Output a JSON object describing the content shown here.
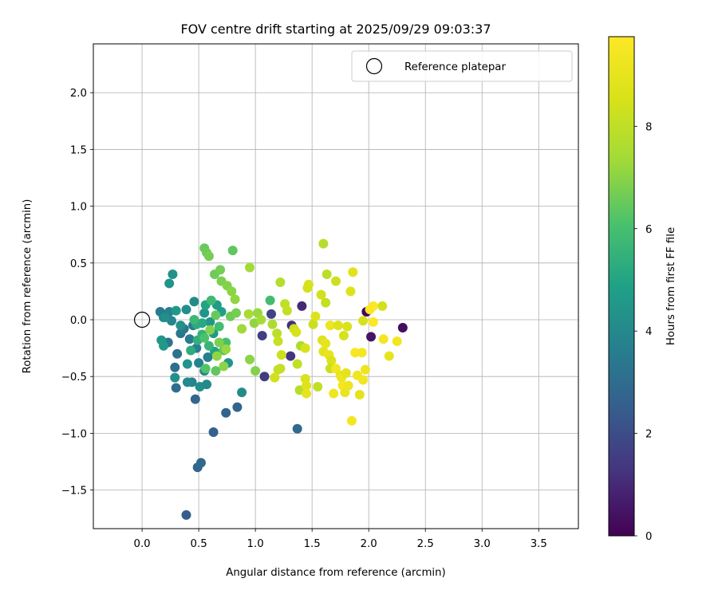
{
  "chart_data": {
    "type": "scatter",
    "title": "FOV centre drift starting at 2025/09/29 09:03:37",
    "xlabel": "Angular distance from reference (arcmin)",
    "ylabel": "Rotation from reference (arcmin)",
    "xlim": [
      -0.43,
      3.85
    ],
    "ylim": [
      -1.84,
      2.43
    ],
    "xticks": [
      0.0,
      0.5,
      1.0,
      1.5,
      2.0,
      2.5,
      3.0,
      3.5
    ],
    "xtick_labels": [
      "0.0",
      "0.5",
      "1.0",
      "1.5",
      "2.0",
      "2.5",
      "3.0",
      "3.5"
    ],
    "yticks": [
      -1.5,
      -1.0,
      -0.5,
      0.0,
      0.5,
      1.0,
      1.5,
      2.0
    ],
    "ytick_labels": [
      "−1.5",
      "−1.0",
      "−0.5",
      "0.0",
      "0.5",
      "1.0",
      "1.5",
      "2.0"
    ],
    "grid": true,
    "legend": {
      "position": "top-right",
      "entries": [
        "Reference platepar"
      ]
    },
    "reference_point": {
      "x": 0.0,
      "y": 0.0
    },
    "colorbar": {
      "label": "Hours from first FF file",
      "min": 0,
      "max": 9.75,
      "ticks": [
        0,
        2,
        4,
        6,
        8
      ],
      "tick_labels": [
        "0",
        "2",
        "4",
        "6",
        "8"
      ],
      "colormap": "viridis"
    },
    "points": [
      {
        "x": 1.98,
        "y": 0.07,
        "t": 0.2
      },
      {
        "x": 2.3,
        "y": -0.07,
        "t": 0.3
      },
      {
        "x": 2.02,
        "y": -0.15,
        "t": 0.5
      },
      {
        "x": 1.41,
        "y": 0.12,
        "t": 1.0
      },
      {
        "x": 1.32,
        "y": -0.05,
        "t": 1.2
      },
      {
        "x": 1.31,
        "y": -0.32,
        "t": 1.3
      },
      {
        "x": 1.08,
        "y": -0.5,
        "t": 1.5
      },
      {
        "x": 1.06,
        "y": -0.14,
        "t": 1.6
      },
      {
        "x": 1.14,
        "y": 0.05,
        "t": 1.7
      },
      {
        "x": 0.39,
        "y": -1.72,
        "t": 2.5
      },
      {
        "x": 0.49,
        "y": -1.3,
        "t": 2.7
      },
      {
        "x": 0.52,
        "y": -1.26,
        "t": 2.9
      },
      {
        "x": 0.63,
        "y": -0.99,
        "t": 2.6
      },
      {
        "x": 0.74,
        "y": -0.82,
        "t": 2.7
      },
      {
        "x": 0.84,
        "y": -0.77,
        "t": 2.8
      },
      {
        "x": 1.37,
        "y": -0.96,
        "t": 2.9
      },
      {
        "x": 0.47,
        "y": -0.7,
        "t": 2.8
      },
      {
        "x": 0.3,
        "y": -0.6,
        "t": 3.0
      },
      {
        "x": 0.29,
        "y": -0.42,
        "t": 3.1
      },
      {
        "x": 0.31,
        "y": -0.3,
        "t": 3.2
      },
      {
        "x": 0.23,
        "y": -0.2,
        "t": 3.3
      },
      {
        "x": 0.16,
        "y": 0.07,
        "t": 3.5
      },
      {
        "x": 0.19,
        "y": 0.02,
        "t": 3.6
      },
      {
        "x": 0.24,
        "y": 0.07,
        "t": 3.7
      },
      {
        "x": 0.26,
        "y": -0.01,
        "t": 3.9
      },
      {
        "x": 0.34,
        "y": -0.12,
        "t": 3.3
      },
      {
        "x": 0.37,
        "y": -0.08,
        "t": 3.4
      },
      {
        "x": 0.42,
        "y": -0.17,
        "t": 3.5
      },
      {
        "x": 0.45,
        "y": -0.05,
        "t": 3.6
      },
      {
        "x": 0.48,
        "y": -0.25,
        "t": 3.7
      },
      {
        "x": 0.5,
        "y": -0.38,
        "t": 3.8
      },
      {
        "x": 0.55,
        "y": -0.45,
        "t": 3.9
      },
      {
        "x": 0.58,
        "y": -0.33,
        "t": 3.6
      },
      {
        "x": 0.44,
        "y": -0.55,
        "t": 3.8
      },
      {
        "x": 0.4,
        "y": -0.55,
        "t": 4.0
      },
      {
        "x": 0.51,
        "y": -0.59,
        "t": 4.2
      },
      {
        "x": 0.57,
        "y": -0.57,
        "t": 4.0
      },
      {
        "x": 0.88,
        "y": -0.64,
        "t": 4.1
      },
      {
        "x": 0.29,
        "y": -0.51,
        "t": 4.3
      },
      {
        "x": 0.4,
        "y": -0.39,
        "t": 4.4
      },
      {
        "x": 0.17,
        "y": -0.18,
        "t": 4.5
      },
      {
        "x": 0.19,
        "y": -0.23,
        "t": 4.6
      },
      {
        "x": 0.24,
        "y": 0.32,
        "t": 4.4
      },
      {
        "x": 0.27,
        "y": 0.4,
        "t": 4.3
      },
      {
        "x": 0.2,
        "y": 0.02,
        "t": 4.2
      },
      {
        "x": 0.3,
        "y": 0.08,
        "t": 4.6
      },
      {
        "x": 0.34,
        "y": -0.05,
        "t": 4.3
      },
      {
        "x": 0.39,
        "y": 0.09,
        "t": 4.2
      },
      {
        "x": 0.46,
        "y": 0.16,
        "t": 4.1
      },
      {
        "x": 0.55,
        "y": 0.06,
        "t": 4.4
      },
      {
        "x": 0.6,
        "y": -0.02,
        "t": 4.5
      },
      {
        "x": 0.63,
        "y": -0.12,
        "t": 4.6
      },
      {
        "x": 0.66,
        "y": 0.13,
        "t": 4.7
      },
      {
        "x": 0.7,
        "y": 0.07,
        "t": 4.8
      },
      {
        "x": 0.76,
        "y": -0.38,
        "t": 4.5
      },
      {
        "x": 0.64,
        "y": -0.28,
        "t": 4.9
      },
      {
        "x": 0.56,
        "y": 0.13,
        "t": 5.0
      },
      {
        "x": 0.53,
        "y": -0.03,
        "t": 5.1
      },
      {
        "x": 0.48,
        "y": -0.04,
        "t": 5.2
      },
      {
        "x": 0.43,
        "y": -0.27,
        "t": 5.3
      },
      {
        "x": 0.49,
        "y": -0.18,
        "t": 5.4
      },
      {
        "x": 0.53,
        "y": -0.13,
        "t": 5.5
      },
      {
        "x": 0.59,
        "y": -0.23,
        "t": 5.6
      },
      {
        "x": 0.46,
        "y": 0.0,
        "t": 5.7
      },
      {
        "x": 0.61,
        "y": 0.17,
        "t": 5.8
      },
      {
        "x": 0.68,
        "y": -0.06,
        "t": 5.9
      },
      {
        "x": 0.74,
        "y": -0.2,
        "t": 6.0
      },
      {
        "x": 0.55,
        "y": -0.16,
        "t": 6.1
      },
      {
        "x": 0.56,
        "y": -0.43,
        "t": 6.2
      },
      {
        "x": 0.72,
        "y": -0.27,
        "t": 6.3
      },
      {
        "x": 0.65,
        "y": -0.45,
        "t": 6.4
      },
      {
        "x": 0.55,
        "y": 0.63,
        "t": 6.5
      },
      {
        "x": 0.57,
        "y": 0.59,
        "t": 6.6
      },
      {
        "x": 0.8,
        "y": 0.61,
        "t": 6.4
      },
      {
        "x": 0.59,
        "y": 0.56,
        "t": 6.7
      },
      {
        "x": 0.64,
        "y": 0.4,
        "t": 6.6
      },
      {
        "x": 0.69,
        "y": 0.44,
        "t": 6.7
      },
      {
        "x": 0.7,
        "y": 0.34,
        "t": 6.8
      },
      {
        "x": 0.75,
        "y": 0.3,
        "t": 6.9
      },
      {
        "x": 0.79,
        "y": 0.25,
        "t": 7.0
      },
      {
        "x": 0.82,
        "y": 0.18,
        "t": 7.1
      },
      {
        "x": 0.65,
        "y": 0.04,
        "t": 6.5
      },
      {
        "x": 0.78,
        "y": 0.03,
        "t": 6.6
      },
      {
        "x": 0.83,
        "y": 0.06,
        "t": 6.7
      },
      {
        "x": 0.68,
        "y": -0.2,
        "t": 6.8
      },
      {
        "x": 0.6,
        "y": -0.09,
        "t": 6.9
      },
      {
        "x": 0.72,
        "y": -0.41,
        "t": 7.0
      },
      {
        "x": 0.66,
        "y": -0.32,
        "t": 7.1
      },
      {
        "x": 0.74,
        "y": -0.26,
        "t": 7.2
      },
      {
        "x": 0.88,
        "y": -0.08,
        "t": 7.3
      },
      {
        "x": 0.95,
        "y": 0.46,
        "t": 7.4
      },
      {
        "x": 0.94,
        "y": 0.05,
        "t": 7.5
      },
      {
        "x": 0.99,
        "y": -0.03,
        "t": 7.1
      },
      {
        "x": 1.0,
        "y": -0.45,
        "t": 6.9
      },
      {
        "x": 0.95,
        "y": -0.35,
        "t": 7.0
      },
      {
        "x": 1.02,
        "y": 0.06,
        "t": 7.2
      },
      {
        "x": 1.05,
        "y": 0.0,
        "t": 7.4
      },
      {
        "x": 1.13,
        "y": 0.17,
        "t": 5.9
      },
      {
        "x": 1.15,
        "y": -0.04,
        "t": 7.6
      },
      {
        "x": 1.22,
        "y": 0.33,
        "t": 7.8
      },
      {
        "x": 1.26,
        "y": 0.14,
        "t": 8.0
      },
      {
        "x": 1.28,
        "y": 0.08,
        "t": 8.1
      },
      {
        "x": 1.19,
        "y": -0.12,
        "t": 7.9
      },
      {
        "x": 1.2,
        "y": -0.19,
        "t": 8.2
      },
      {
        "x": 1.23,
        "y": -0.31,
        "t": 8.3
      },
      {
        "x": 1.2,
        "y": -0.44,
        "t": 8.0
      },
      {
        "x": 1.17,
        "y": -0.51,
        "t": 8.4
      },
      {
        "x": 1.22,
        "y": -0.43,
        "t": 8.1
      },
      {
        "x": 1.34,
        "y": -0.08,
        "t": 8.3
      },
      {
        "x": 1.36,
        "y": -0.11,
        "t": 8.5
      },
      {
        "x": 1.37,
        "y": -0.39,
        "t": 8.0
      },
      {
        "x": 1.4,
        "y": -0.23,
        "t": 7.6
      },
      {
        "x": 1.44,
        "y": -0.25,
        "t": 8.6
      },
      {
        "x": 1.39,
        "y": -0.62,
        "t": 7.8
      },
      {
        "x": 1.44,
        "y": -0.52,
        "t": 8.6
      },
      {
        "x": 1.45,
        "y": -0.58,
        "t": 8.8
      },
      {
        "x": 1.45,
        "y": -0.65,
        "t": 9.0
      },
      {
        "x": 1.46,
        "y": 0.28,
        "t": 8.4
      },
      {
        "x": 1.47,
        "y": 0.31,
        "t": 8.5
      },
      {
        "x": 1.51,
        "y": -0.04,
        "t": 8.2
      },
      {
        "x": 1.53,
        "y": 0.03,
        "t": 8.7
      },
      {
        "x": 1.55,
        "y": -0.59,
        "t": 8.0
      },
      {
        "x": 1.58,
        "y": 0.22,
        "t": 8.4
      },
      {
        "x": 1.6,
        "y": 0.67,
        "t": 7.8
      },
      {
        "x": 1.62,
        "y": 0.15,
        "t": 8.1
      },
      {
        "x": 1.63,
        "y": 0.4,
        "t": 7.9
      },
      {
        "x": 1.59,
        "y": -0.18,
        "t": 8.8
      },
      {
        "x": 1.6,
        "y": -0.28,
        "t": 8.9
      },
      {
        "x": 1.62,
        "y": -0.21,
        "t": 9.0
      },
      {
        "x": 1.65,
        "y": -0.31,
        "t": 9.1
      },
      {
        "x": 1.67,
        "y": -0.36,
        "t": 8.6
      },
      {
        "x": 1.66,
        "y": -0.43,
        "t": 8.2
      },
      {
        "x": 1.66,
        "y": -0.05,
        "t": 9.2
      },
      {
        "x": 1.69,
        "y": -0.65,
        "t": 9.3
      },
      {
        "x": 1.71,
        "y": -0.43,
        "t": 9.4
      },
      {
        "x": 1.71,
        "y": 0.34,
        "t": 8.3
      },
      {
        "x": 1.73,
        "y": -0.05,
        "t": 8.7
      },
      {
        "x": 1.75,
        "y": -0.49,
        "t": 9.0
      },
      {
        "x": 1.76,
        "y": -0.51,
        "t": 9.2
      },
      {
        "x": 1.77,
        "y": -0.58,
        "t": 9.4
      },
      {
        "x": 1.78,
        "y": -0.14,
        "t": 8.5
      },
      {
        "x": 1.79,
        "y": -0.64,
        "t": 9.1
      },
      {
        "x": 1.8,
        "y": -0.47,
        "t": 8.9
      },
      {
        "x": 1.81,
        "y": -0.06,
        "t": 8.6
      },
      {
        "x": 1.82,
        "y": -0.58,
        "t": 9.2
      },
      {
        "x": 1.84,
        "y": 0.25,
        "t": 8.7
      },
      {
        "x": 1.85,
        "y": -0.89,
        "t": 9.5
      },
      {
        "x": 1.86,
        "y": 0.42,
        "t": 8.8
      },
      {
        "x": 1.88,
        "y": -0.29,
        "t": 9.6
      },
      {
        "x": 1.9,
        "y": -0.49,
        "t": 9.3
      },
      {
        "x": 1.92,
        "y": -0.66,
        "t": 8.9
      },
      {
        "x": 1.94,
        "y": -0.29,
        "t": 9.5
      },
      {
        "x": 1.95,
        "y": -0.53,
        "t": 9.4
      },
      {
        "x": 1.95,
        "y": -0.01,
        "t": 8.5
      },
      {
        "x": 1.97,
        "y": -0.44,
        "t": 9.2
      },
      {
        "x": 2.01,
        "y": 0.09,
        "t": 9.6
      },
      {
        "x": 2.04,
        "y": 0.12,
        "t": 9.7
      },
      {
        "x": 2.04,
        "y": -0.02,
        "t": 9.7
      },
      {
        "x": 2.12,
        "y": 0.12,
        "t": 8.4
      },
      {
        "x": 2.13,
        "y": -0.17,
        "t": 9.5
      },
      {
        "x": 2.18,
        "y": -0.32,
        "t": 9.0
      },
      {
        "x": 2.25,
        "y": -0.19,
        "t": 9.4
      }
    ]
  }
}
